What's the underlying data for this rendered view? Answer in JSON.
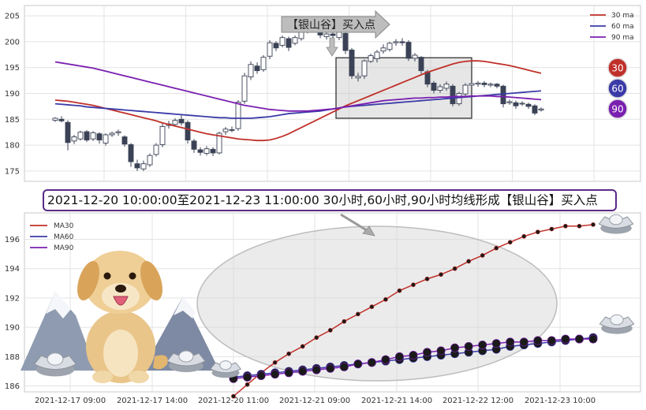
{
  "banner_text": "2021-12-20 10:00:00至2021-12-23 11:00:00 30小时,60小时,90小时均线形成【银山谷】买入点",
  "callout_text": "【银山谷】买入点",
  "badges": [
    "30",
    "60",
    "90"
  ],
  "colors": {
    "ma30": "#c0302a",
    "ma60": "#3a3aa8",
    "ma90": "#7a1fb0",
    "candle_down": "#3b4256",
    "badge30": "#c0302a",
    "badge60": "#3a3aa8",
    "badge90": "#7a1fb0"
  },
  "decorations": [
    "dog-mascot-icon",
    "snow-mountain-icon",
    "silver-ingot-icon"
  ],
  "chart_data": [
    {
      "type": "candlestick",
      "legend": [
        "30 ma",
        "60 ma",
        "90 ma"
      ],
      "legend_position": "top-right",
      "grid": true,
      "ylim": [
        173,
        207
      ],
      "yticks": [
        175,
        180,
        185,
        190,
        195,
        200,
        205
      ],
      "candles": [
        [
          184.8,
          185.2,
          184.5,
          185.4
        ],
        [
          185.0,
          184.7,
          184.4,
          185.6
        ],
        [
          184.4,
          180.5,
          179.0,
          184.8
        ],
        [
          180.8,
          181.6,
          180.2,
          182.0
        ],
        [
          181.2,
          182.5,
          180.9,
          182.8
        ],
        [
          182.6,
          181.0,
          180.6,
          182.9
        ],
        [
          181.2,
          182.4,
          180.8,
          182.7
        ],
        [
          182.2,
          181.0,
          180.3,
          182.5
        ],
        [
          180.4,
          182.0,
          179.9,
          182.3
        ],
        [
          182.0,
          182.3,
          181.6,
          182.6
        ],
        [
          182.4,
          182.6,
          181.8,
          183.0
        ],
        [
          181.6,
          180.2,
          179.7,
          181.9
        ],
        [
          180.1,
          176.8,
          175.8,
          180.4
        ],
        [
          176.4,
          175.6,
          175.0,
          177.2
        ],
        [
          175.4,
          176.4,
          175.0,
          177.0
        ],
        [
          176.2,
          178.0,
          175.8,
          178.4
        ],
        [
          178.2,
          180.0,
          177.8,
          180.4
        ],
        [
          180.1,
          183.6,
          179.6,
          184.2
        ],
        [
          183.8,
          184.1,
          183.2,
          184.7
        ],
        [
          184.0,
          184.8,
          183.6,
          185.2
        ],
        [
          185.0,
          184.3,
          183.8,
          185.8
        ],
        [
          184.4,
          181.0,
          180.3,
          184.8
        ],
        [
          180.8,
          179.2,
          178.5,
          181.2
        ],
        [
          179.1,
          178.6,
          178.0,
          179.6
        ],
        [
          178.4,
          179.3,
          178.0,
          179.8
        ],
        [
          179.2,
          178.5,
          177.9,
          179.6
        ],
        [
          178.5,
          182.3,
          178.2,
          182.6
        ],
        [
          182.6,
          183.1,
          182.0,
          183.5
        ],
        [
          183.0,
          182.9,
          182.5,
          183.6
        ],
        [
          183.2,
          188.3,
          182.8,
          188.7
        ],
        [
          188.5,
          193.4,
          188.0,
          194.0
        ],
        [
          193.2,
          195.6,
          192.6,
          196.2
        ],
        [
          195.3,
          194.4,
          193.8,
          196.0
        ],
        [
          194.6,
          197.0,
          194.2,
          197.4
        ],
        [
          197.2,
          199.8,
          196.6,
          200.3
        ],
        [
          199.7,
          198.8,
          198.2,
          200.1
        ],
        [
          199.3,
          200.8,
          198.9,
          201.2
        ],
        [
          200.6,
          198.9,
          198.2,
          201.0
        ],
        [
          199.7,
          200.8,
          199.3,
          201.2
        ],
        [
          200.6,
          202.3,
          200.2,
          202.8
        ],
        [
          202.2,
          203.8,
          201.6,
          204.2
        ],
        [
          203.8,
          202.6,
          202.0,
          204.5
        ],
        [
          202.4,
          201.3,
          200.7,
          202.8
        ],
        [
          201.0,
          201.5,
          200.4,
          201.9
        ],
        [
          201.5,
          201.2,
          200.6,
          202.1
        ],
        [
          200.8,
          202.1,
          200.3,
          202.5
        ],
        [
          201.6,
          198.3,
          197.6,
          202.0
        ],
        [
          198.4,
          193.4,
          192.8,
          198.8
        ],
        [
          193.0,
          193.3,
          192.3,
          194.0
        ],
        [
          193.4,
          196.3,
          192.8,
          196.6
        ],
        [
          196.2,
          197.3,
          195.9,
          197.7
        ],
        [
          196.7,
          198.0,
          196.0,
          198.4
        ],
        [
          198.2,
          198.8,
          197.7,
          199.5
        ],
        [
          198.5,
          199.7,
          198.1,
          200.0
        ],
        [
          199.8,
          200.0,
          199.2,
          200.5
        ],
        [
          200.0,
          199.8,
          199.2,
          200.7
        ],
        [
          199.9,
          196.8,
          196.3,
          200.3
        ],
        [
          196.8,
          197.4,
          196.2,
          197.8
        ],
        [
          197.0,
          194.4,
          193.8,
          197.2
        ],
        [
          194.2,
          191.8,
          191.2,
          194.6
        ],
        [
          192.0,
          190.6,
          190.0,
          192.4
        ],
        [
          190.6,
          191.3,
          190.1,
          191.8
        ],
        [
          191.0,
          191.8,
          190.5,
          192.3
        ],
        [
          191.4,
          188.0,
          187.5,
          191.8
        ],
        [
          188.0,
          190.0,
          187.6,
          190.3
        ],
        [
          189.9,
          191.6,
          189.5,
          192.0
        ],
        [
          191.6,
          191.9,
          191.2,
          192.2
        ],
        [
          191.8,
          192.0,
          191.3,
          192.4
        ],
        [
          192.0,
          191.7,
          191.2,
          192.4
        ],
        [
          191.6,
          191.8,
          191.2,
          192.1
        ],
        [
          191.8,
          191.4,
          191.0,
          192.0
        ],
        [
          191.4,
          188.0,
          187.3,
          191.7
        ],
        [
          188.2,
          188.4,
          187.8,
          188.8
        ],
        [
          188.2,
          187.6,
          187.0,
          188.6
        ],
        [
          188.0,
          188.1,
          187.6,
          188.5
        ],
        [
          187.9,
          187.5,
          187.0,
          188.2
        ],
        [
          187.6,
          186.2,
          185.8,
          187.9
        ],
        [
          186.8,
          187.0,
          186.5,
          187.3
        ]
      ],
      "ma30": [
        188.7,
        188.6,
        188.5,
        188.3,
        188.1,
        187.9,
        187.7,
        187.4,
        187.1,
        186.8,
        186.5,
        186.2,
        185.9,
        185.6,
        185.3,
        185.0,
        184.7,
        184.3,
        184.0,
        183.7,
        183.4,
        183.1,
        182.8,
        182.5,
        182.2,
        182.0,
        181.8,
        181.6,
        181.4,
        181.2,
        181.1,
        181.0,
        180.9,
        180.9,
        181.0,
        181.3,
        181.7,
        182.2,
        182.8,
        183.4,
        184.0,
        184.6,
        185.2,
        185.8,
        186.4,
        187.0,
        187.6,
        188.1,
        188.6,
        189.1,
        189.6,
        190.1,
        190.6,
        191.1,
        191.6,
        192.1,
        192.6,
        193.1,
        193.6,
        194.1,
        194.5,
        194.9,
        195.3,
        195.7,
        196.0,
        196.2,
        196.3,
        196.3,
        196.2,
        196.0,
        195.8,
        195.6,
        195.4,
        195.1,
        194.8,
        194.5,
        194.2,
        193.9
      ],
      "ma60": [
        188.0,
        187.9,
        187.8,
        187.7,
        187.6,
        187.4,
        187.3,
        187.2,
        187.1,
        187.0,
        186.9,
        186.8,
        186.7,
        186.6,
        186.5,
        186.4,
        186.3,
        186.2,
        186.1,
        186.0,
        185.9,
        185.8,
        185.7,
        185.6,
        185.5,
        185.4,
        185.3,
        185.3,
        185.2,
        185.2,
        185.2,
        185.2,
        185.3,
        185.4,
        185.5,
        185.7,
        185.9,
        186.1,
        186.2,
        186.3,
        186.4,
        186.5,
        186.6,
        186.8,
        187.0,
        187.2,
        187.4,
        187.5,
        187.6,
        187.7,
        187.8,
        187.9,
        188.0,
        188.1,
        188.2,
        188.3,
        188.4,
        188.5,
        188.6,
        188.7,
        188.8,
        188.9,
        189.0,
        189.1,
        189.2,
        189.3,
        189.4,
        189.5,
        189.6,
        189.7,
        189.8,
        189.9,
        190.0,
        190.1,
        190.2,
        190.3,
        190.4,
        190.5
      ],
      "ma90": [
        196.1,
        195.9,
        195.7,
        195.5,
        195.3,
        195.1,
        194.9,
        194.6,
        194.3,
        194.0,
        193.7,
        193.4,
        193.1,
        192.8,
        192.5,
        192.2,
        191.9,
        191.6,
        191.3,
        191.0,
        190.7,
        190.4,
        190.1,
        189.8,
        189.5,
        189.2,
        188.9,
        188.6,
        188.3,
        188.0,
        187.7,
        187.5,
        187.3,
        187.1,
        186.9,
        186.8,
        186.7,
        186.6,
        186.6,
        186.6,
        186.6,
        186.7,
        186.8,
        186.9,
        187.0,
        187.2,
        187.4,
        187.6,
        187.8,
        188.0,
        188.2,
        188.4,
        188.6,
        188.7,
        188.8,
        188.9,
        189.0,
        189.1,
        189.1,
        189.2,
        189.2,
        189.3,
        189.3,
        189.4,
        189.4,
        189.4,
        189.5,
        189.5,
        189.5,
        189.5,
        189.4,
        189.4,
        189.3,
        189.2,
        189.1,
        189.0,
        188.9,
        188.8
      ],
      "highlight_box": {
        "x_start_index": 45,
        "x_end_index": 65,
        "y_min": 185.2,
        "y_max": 196.9
      }
    },
    {
      "type": "line",
      "legend": [
        "MA30",
        "MA60",
        "MA90"
      ],
      "legend_position": "top-left",
      "grid": true,
      "ylim": [
        185.6,
        197.8
      ],
      "yticks": [
        186,
        188,
        190,
        192,
        194,
        196
      ],
      "xticks": [
        "2021-12-17 09:00",
        "2021-12-17 14:00",
        "2021-12-20 11:00",
        "2021-12-21 09:00",
        "2021-12-21 14:00",
        "2021-12-22 12:00",
        "2021-12-23 10:00"
      ],
      "x_index_range": [
        0,
        26
      ],
      "series": [
        {
          "name": "MA30",
          "values": [
            185.3,
            186.1,
            186.9,
            187.6,
            188.2,
            188.7,
            189.3,
            189.8,
            190.4,
            190.9,
            191.4,
            191.9,
            192.5,
            192.9,
            193.3,
            193.6,
            194.0,
            194.5,
            194.9,
            195.4,
            195.8,
            196.2,
            196.5,
            196.7,
            196.9,
            196.9,
            197.0
          ]
        },
        {
          "name": "MA60",
          "values": [
            186.6,
            186.7,
            186.8,
            186.9,
            187.0,
            187.1,
            187.2,
            187.3,
            187.4,
            187.5,
            187.6,
            187.7,
            187.8,
            187.9,
            188.0,
            188.1,
            188.2,
            188.3,
            188.4,
            188.5,
            188.7,
            188.8,
            188.9,
            189.0,
            189.1,
            189.2,
            189.3
          ]
        },
        {
          "name": "MA90",
          "values": [
            186.5,
            186.6,
            186.7,
            186.8,
            186.9,
            187.0,
            187.1,
            187.2,
            187.3,
            187.5,
            187.6,
            187.8,
            188.0,
            188.1,
            188.3,
            188.4,
            188.6,
            188.7,
            188.8,
            188.9,
            189.0,
            189.0,
            189.1,
            189.1,
            189.2,
            189.2,
            189.2
          ]
        }
      ]
    }
  ]
}
